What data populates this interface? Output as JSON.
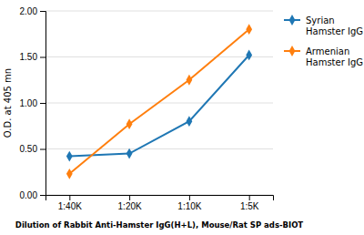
{
  "chart_data": {
    "type": "line",
    "x_label": "Dilution of Rabbit Anti-Hamster IgG(H+L), Mouse/Rat SP ads-BIOT",
    "y_label": "O.D. at 405 mn",
    "categories": [
      "1:40K",
      "1:20K",
      "1:10K",
      "1:5K"
    ],
    "series": [
      {
        "name": "Syrian\nHamster IgG",
        "values": [
          0.42,
          0.45,
          0.8,
          1.52
        ]
      },
      {
        "name": "Armenian\nHamster IgG",
        "values": [
          0.23,
          0.77,
          1.25,
          1.8
        ]
      }
    ],
    "ylim": [
      0.0,
      2.0
    ],
    "yticks": [
      {
        "value": 0.0,
        "label": "0.00"
      },
      {
        "value": 0.5,
        "label": "0.50"
      },
      {
        "value": 1.0,
        "label": "1.00"
      },
      {
        "value": 1.5,
        "label": "1.50"
      },
      {
        "value": 2.0,
        "label": "2.00"
      }
    ],
    "grid": true,
    "legend": "upper right",
    "marker": "diamond"
  }
}
